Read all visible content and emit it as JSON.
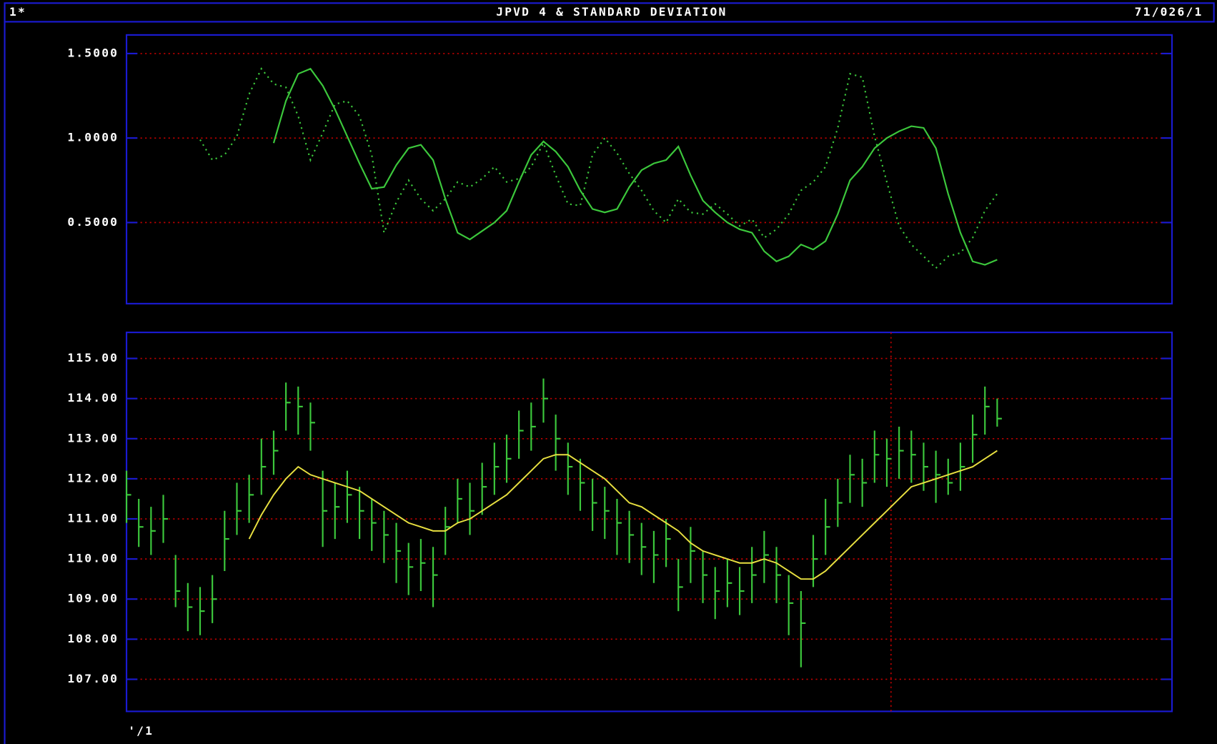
{
  "header": {
    "left": "1*",
    "title": "JPVD 4 & STANDARD DEVIATION",
    "right": "71/026/1"
  },
  "chart_data": [
    {
      "type": "line",
      "ylim": [
        0.02,
        1.61
      ],
      "yticks": [
        {
          "value": 0.5,
          "label": "0.5000"
        },
        {
          "value": 1.0,
          "label": "1.0000"
        },
        {
          "value": 1.5,
          "label": "1.5000"
        }
      ],
      "grid": true,
      "series": [
        {
          "color": "#3cc83c",
          "dash": "solid",
          "values": [
            null,
            null,
            null,
            null,
            null,
            null,
            null,
            null,
            null,
            null,
            null,
            null,
            0.97,
            1.22,
            1.38,
            1.41,
            1.31,
            1.17,
            1.01,
            0.85,
            0.7,
            0.71,
            0.84,
            0.94,
            0.96,
            0.87,
            0.64,
            0.44,
            0.4,
            0.45,
            0.5,
            0.57,
            0.74,
            0.9,
            0.98,
            0.92,
            0.83,
            0.69,
            0.58,
            0.56,
            0.58,
            0.71,
            0.81,
            0.85,
            0.87,
            0.95,
            0.78,
            0.63,
            0.56,
            0.5,
            0.46,
            0.44,
            0.33,
            0.27,
            0.3,
            0.37,
            0.34,
            0.39,
            0.55,
            0.75,
            0.83,
            0.94,
            1.0,
            1.04,
            1.07,
            1.06,
            0.94,
            0.67,
            0.44,
            0.27,
            0.25,
            0.28
          ]
        },
        {
          "color": "#3cc83c",
          "dash": "dotted",
          "values": [
            null,
            null,
            null,
            null,
            null,
            null,
            0.99,
            0.87,
            0.9,
            1.01,
            1.26,
            1.41,
            1.32,
            1.3,
            1.13,
            0.87,
            1.03,
            1.2,
            1.22,
            1.13,
            0.9,
            0.44,
            0.62,
            0.75,
            0.64,
            0.57,
            0.64,
            0.74,
            0.71,
            0.76,
            0.83,
            0.74,
            0.76,
            0.83,
            0.97,
            0.78,
            0.61,
            0.6,
            0.9,
            1.0,
            0.91,
            0.79,
            0.69,
            0.57,
            0.5,
            0.64,
            0.56,
            0.55,
            0.61,
            0.55,
            0.48,
            0.52,
            0.41,
            0.46,
            0.55,
            0.69,
            0.74,
            0.83,
            1.06,
            1.38,
            1.36,
            1.01,
            0.74,
            0.48,
            0.37,
            0.3,
            0.23,
            0.3,
            0.32,
            0.41,
            0.57,
            0.67
          ]
        }
      ]
    },
    {
      "type": "ohlc",
      "ylim": [
        106.2,
        115.65
      ],
      "yticks": [
        {
          "value": 107,
          "label": "107.00"
        },
        {
          "value": 108,
          "label": "108.00"
        },
        {
          "value": 109,
          "label": "109.00"
        },
        {
          "value": 110,
          "label": "110.00"
        },
        {
          "value": 111,
          "label": "111.00"
        },
        {
          "value": 112,
          "label": "112.00"
        },
        {
          "value": 113,
          "label": "113.00"
        },
        {
          "value": 114,
          "label": "114.00"
        },
        {
          "value": 115,
          "label": "115.00"
        }
      ],
      "grid": true,
      "color": "#3cc83c",
      "high": [
        112.2,
        111.5,
        111.3,
        111.6,
        110.1,
        109.4,
        109.3,
        109.6,
        111.2,
        111.9,
        112.1,
        113.0,
        113.2,
        114.4,
        114.3,
        113.9,
        112.2,
        111.9,
        112.2,
        111.8,
        111.5,
        111.2,
        110.9,
        110.4,
        110.5,
        110.3,
        111.3,
        112.0,
        111.9,
        112.4,
        112.9,
        113.1,
        113.7,
        113.9,
        114.5,
        113.6,
        112.9,
        112.5,
        112.0,
        111.8,
        111.5,
        111.2,
        110.9,
        110.7,
        111.0,
        110.0,
        110.8,
        110.2,
        109.8,
        110.0,
        109.8,
        110.3,
        110.7,
        110.3,
        109.6,
        109.2,
        110.6,
        111.5,
        112.0,
        112.6,
        112.5,
        113.2,
        113.0,
        113.3,
        113.2,
        112.9,
        112.7,
        112.5,
        112.9,
        113.6,
        114.3,
        114.0
      ],
      "low": [
        110.9,
        110.3,
        110.1,
        110.4,
        108.8,
        108.2,
        108.1,
        108.4,
        109.7,
        110.6,
        110.9,
        111.6,
        112.1,
        113.2,
        113.1,
        112.7,
        110.3,
        110.5,
        110.9,
        110.5,
        110.2,
        109.9,
        109.4,
        109.1,
        109.2,
        108.8,
        110.1,
        110.9,
        110.6,
        111.1,
        111.6,
        111.9,
        112.5,
        112.7,
        113.4,
        112.2,
        111.6,
        111.2,
        110.7,
        110.5,
        110.1,
        109.9,
        109.6,
        109.4,
        109.8,
        108.7,
        109.4,
        108.9,
        108.5,
        108.8,
        108.6,
        108.9,
        109.4,
        108.9,
        108.1,
        107.3,
        109.3,
        110.1,
        110.8,
        111.4,
        111.3,
        111.9,
        111.8,
        112.0,
        111.9,
        111.7,
        111.4,
        111.6,
        111.7,
        112.4,
        113.1,
        113.3
      ],
      "close": [
        111.6,
        110.8,
        110.7,
        111.0,
        109.2,
        108.8,
        108.7,
        109.0,
        110.5,
        111.2,
        111.6,
        112.3,
        112.7,
        113.9,
        113.8,
        113.4,
        111.2,
        111.3,
        111.6,
        111.2,
        110.9,
        110.6,
        110.2,
        109.8,
        109.9,
        109.6,
        110.8,
        111.5,
        111.2,
        111.8,
        112.3,
        112.5,
        113.2,
        113.3,
        114.0,
        113.0,
        112.3,
        111.9,
        111.4,
        111.2,
        110.9,
        110.6,
        110.3,
        110.1,
        110.5,
        109.3,
        110.2,
        109.6,
        109.2,
        109.4,
        109.2,
        109.6,
        110.1,
        109.6,
        108.9,
        108.4,
        110.0,
        110.8,
        111.4,
        112.1,
        111.9,
        112.6,
        112.5,
        112.7,
        112.6,
        112.3,
        112.1,
        111.9,
        112.3,
        113.1,
        113.8,
        113.5
      ],
      "series": [
        {
          "color": "#e8e040",
          "values": [
            null,
            null,
            null,
            null,
            null,
            null,
            null,
            null,
            null,
            null,
            110.5,
            111.1,
            111.6,
            112.0,
            112.3,
            112.1,
            112.0,
            111.9,
            111.8,
            111.7,
            111.5,
            111.3,
            111.1,
            110.9,
            110.8,
            110.7,
            110.7,
            110.9,
            111.0,
            111.2,
            111.4,
            111.6,
            111.9,
            112.2,
            112.5,
            112.6,
            112.6,
            112.4,
            112.2,
            112.0,
            111.7,
            111.4,
            111.3,
            111.1,
            110.9,
            110.7,
            110.4,
            110.2,
            110.1,
            110.0,
            109.9,
            109.9,
            110.0,
            109.9,
            109.7,
            109.5,
            109.5,
            109.7,
            110.0,
            110.3,
            110.6,
            110.9,
            111.2,
            111.5,
            111.8,
            111.9,
            112.0,
            112.1,
            112.2,
            112.3,
            112.5,
            112.7
          ]
        }
      ],
      "x_label": "'/1"
    }
  ]
}
